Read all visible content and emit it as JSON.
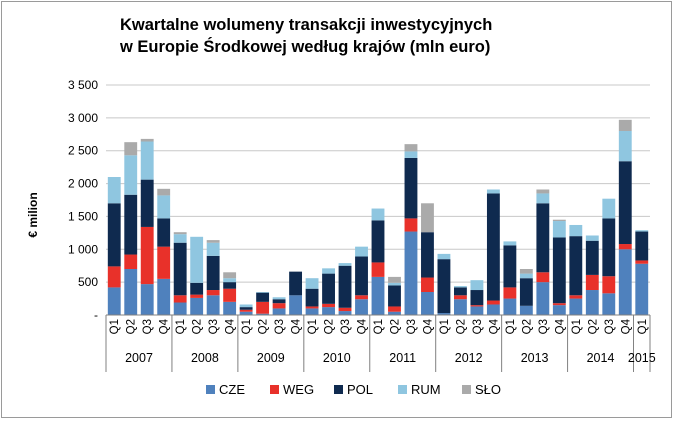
{
  "chart_data": {
    "type": "bar",
    "stacked": true,
    "title_lines": [
      "Kwartalne wolumeny transakcji inwestycyjnych",
      "w Europie Środkowej według krajów (mln euro)"
    ],
    "ylabel": "€ milion",
    "ylim": [
      0,
      3500
    ],
    "yticks": [
      0,
      500,
      1000,
      1500,
      2000,
      2500,
      3000,
      3500
    ],
    "ytick_labels": [
      "-",
      "500",
      "1 000",
      "1 500",
      "2 000",
      "2 500",
      "3 000",
      "3 500"
    ],
    "grid": true,
    "legend_position": "bottom",
    "categories": [
      "Q1",
      "Q2",
      "Q3",
      "Q4",
      "Q1",
      "Q2",
      "Q3",
      "Q4",
      "Q1",
      "Q2",
      "Q3",
      "Q4",
      "Q1",
      "Q2",
      "Q3",
      "Q4",
      "Q1",
      "Q2",
      "Q3",
      "Q4",
      "Q1",
      "Q2",
      "Q3",
      "Q4",
      "Q1",
      "Q2",
      "Q3",
      "Q4",
      "Q1",
      "Q2",
      "Q3",
      "Q4",
      "Q1"
    ],
    "year_groups": [
      {
        "label": "2007",
        "count": 4
      },
      {
        "label": "2008",
        "count": 4
      },
      {
        "label": "2009",
        "count": 4
      },
      {
        "label": "2010",
        "count": 4
      },
      {
        "label": "2011",
        "count": 4
      },
      {
        "label": "2012",
        "count": 4
      },
      {
        "label": "2013",
        "count": 4
      },
      {
        "label": "2014",
        "count": 4
      },
      {
        "label": "2015",
        "count": 1
      }
    ],
    "series": [
      {
        "name": "CZE",
        "color": "#4f81bd",
        "values": [
          420,
          700,
          470,
          550,
          190,
          260,
          300,
          200,
          50,
          20,
          100,
          300,
          100,
          120,
          60,
          240,
          580,
          50,
          1270,
          350,
          30,
          240,
          130,
          160,
          250,
          140,
          500,
          150,
          250,
          380,
          330,
          1000,
          780
        ]
      },
      {
        "name": "WEG",
        "color": "#e8312a",
        "values": [
          320,
          220,
          870,
          490,
          110,
          50,
          80,
          200,
          30,
          180,
          80,
          0,
          30,
          50,
          50,
          60,
          220,
          80,
          200,
          220,
          0,
          60,
          20,
          60,
          170,
          0,
          150,
          30,
          50,
          230,
          260,
          80,
          50
        ]
      },
      {
        "name": "POL",
        "color": "#0f2a4f",
        "values": [
          960,
          910,
          720,
          430,
          800,
          180,
          520,
          100,
          40,
          140,
          60,
          360,
          270,
          460,
          640,
          590,
          640,
          320,
          920,
          690,
          820,
          120,
          230,
          1630,
          640,
          420,
          1050,
          1000,
          900,
          520,
          880,
          1260,
          440
        ]
      },
      {
        "name": "RUM",
        "color": "#8fc6e0",
        "values": [
          400,
          600,
          580,
          350,
          130,
          700,
          200,
          60,
          40,
          10,
          30,
          0,
          160,
          80,
          40,
          150,
          180,
          40,
          100,
          0,
          80,
          20,
          150,
          60,
          60,
          70,
          150,
          250,
          170,
          80,
          300,
          460,
          20
        ]
      },
      {
        "name": "SŁO",
        "color": "#aaaaaa",
        "values": [
          0,
          200,
          40,
          100,
          30,
          0,
          40,
          90,
          0,
          0,
          0,
          0,
          0,
          0,
          0,
          0,
          0,
          90,
          110,
          440,
          0,
          0,
          0,
          0,
          0,
          70,
          60,
          20,
          0,
          0,
          0,
          170,
          0
        ]
      }
    ]
  }
}
